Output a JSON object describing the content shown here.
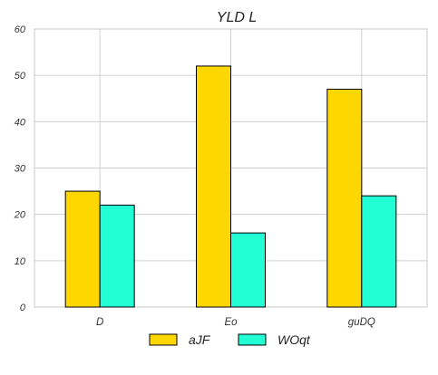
{
  "chart_data": {
    "type": "bar",
    "title": "YLD L",
    "xlabel": "",
    "ylabel": "",
    "categories": [
      "D",
      "Eo",
      "guDQ"
    ],
    "series": [
      {
        "name": "aJF",
        "values": [
          25,
          52,
          47
        ],
        "color": "#ffd700"
      },
      {
        "name": "WOqt",
        "values": [
          22,
          16,
          24
        ],
        "color": "#22ffd5"
      }
    ],
    "ylim": [
      0,
      60
    ],
    "yticks": [
      "0",
      "10",
      "20",
      "30",
      "40",
      "50",
      "60"
    ],
    "grid": true,
    "legend_position": "bottom"
  }
}
